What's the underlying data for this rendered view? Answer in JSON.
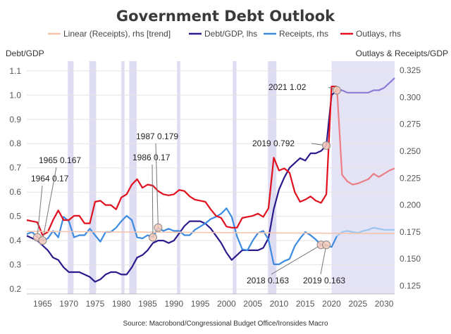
{
  "chart_data": {
    "type": "line",
    "title": "Government Debt Outlook",
    "source": "Source: Macrobond/Congressional Budget Office/Ironsides Macro",
    "left_axis_title": "Debt/GDP",
    "right_axis_title": "Outlays & Receipts/GDP",
    "x_range": [
      1962,
      2032
    ],
    "y_left_range": [
      0.18,
      1.14
    ],
    "y_right_range": [
      0.1175,
      0.3335
    ],
    "x_ticks": [
      1965,
      1970,
      1975,
      1980,
      1985,
      1990,
      1995,
      2000,
      2005,
      2010,
      2015,
      2020,
      2025,
      2030
    ],
    "y_left_ticks": [
      "0.2",
      "0.3",
      "0.4",
      "0.5",
      "0.6",
      "0.7",
      "0.8",
      "0.9",
      "1.0",
      "1.1"
    ],
    "y_right_ticks": [
      "0.125",
      "0.150",
      "0.175",
      "0.200",
      "0.225",
      "0.250",
      "0.275",
      "0.300",
      "0.325"
    ],
    "recessions": [
      [
        1969.8,
        1970.9
      ],
      [
        1973.9,
        1975.2
      ],
      [
        1980.0,
        1980.6
      ],
      [
        1981.5,
        1982.9
      ],
      [
        1990.6,
        1991.2
      ],
      [
        2001.2,
        2001.9
      ],
      [
        2007.9,
        2009.5
      ]
    ],
    "forecast_shade": [
      2020.0,
      2032.0
    ],
    "legend": [
      {
        "key": "trend",
        "label": "Linear (Receipts), rhs [trend]",
        "color": "#f5c4aa"
      },
      {
        "key": "debt",
        "label": "Debt/GDP, lhs",
        "color": "#2b1a8c"
      },
      {
        "key": "receipts",
        "label": "Receipts, rhs",
        "color": "#3d8be0"
      },
      {
        "key": "outlays",
        "label": "Outlays, rhs",
        "color": "#e0101e"
      }
    ],
    "series": [
      {
        "name": "Debt/GDP, lhs",
        "axis": "left",
        "color": "#2b1a8c",
        "forecast_color": "#8a7cd6",
        "x": [
          1962,
          1963,
          1964,
          1965,
          1966,
          1967,
          1968,
          1969,
          1970,
          1971,
          1972,
          1973,
          1974,
          1975,
          1976,
          1977,
          1978,
          1979,
          1980,
          1981,
          1982,
          1983,
          1984,
          1985,
          1986,
          1987,
          1988,
          1989,
          1990,
          1991,
          1992,
          1993,
          1994,
          1995,
          1996,
          1997,
          1998,
          1999,
          2000,
          2001,
          2002,
          2003,
          2004,
          2005,
          2006,
          2007,
          2008,
          2009,
          2010,
          2011,
          2012,
          2013,
          2014,
          2015,
          2016,
          2017,
          2018,
          2019,
          2020,
          2021,
          2022,
          2023,
          2024,
          2025,
          2026,
          2027,
          2028,
          2029,
          2030,
          2031,
          2032
        ],
        "y": [
          0.42,
          0.41,
          0.4,
          0.38,
          0.36,
          0.33,
          0.32,
          0.29,
          0.27,
          0.27,
          0.27,
          0.26,
          0.25,
          0.23,
          0.24,
          0.26,
          0.27,
          0.27,
          0.26,
          0.26,
          0.29,
          0.33,
          0.34,
          0.36,
          0.39,
          0.4,
          0.4,
          0.39,
          0.4,
          0.43,
          0.46,
          0.48,
          0.48,
          0.48,
          0.47,
          0.45,
          0.42,
          0.39,
          0.35,
          0.32,
          0.34,
          0.36,
          0.36,
          0.36,
          0.36,
          0.37,
          0.41,
          0.53,
          0.61,
          0.66,
          0.7,
          0.72,
          0.74,
          0.73,
          0.76,
          0.76,
          0.77,
          0.792,
          1.0,
          1.02,
          1.02,
          1.01,
          1.01,
          1.01,
          1.01,
          1.01,
          1.02,
          1.02,
          1.03,
          1.05,
          1.07
        ]
      },
      {
        "name": "Receipts, rhs",
        "axis": "right",
        "color": "#3d8be0",
        "forecast_color": "#9cc4ef",
        "x": [
          1962,
          1963,
          1964,
          1965,
          1966,
          1967,
          1968,
          1969,
          1970,
          1971,
          1972,
          1973,
          1974,
          1975,
          1976,
          1977,
          1978,
          1979,
          1980,
          1981,
          1982,
          1983,
          1984,
          1985,
          1986,
          1987,
          1988,
          1989,
          1990,
          1991,
          1992,
          1993,
          1994,
          1995,
          1996,
          1997,
          1998,
          1999,
          2000,
          2001,
          2002,
          2003,
          2004,
          2005,
          2006,
          2007,
          2008,
          2009,
          2010,
          2011,
          2012,
          2013,
          2014,
          2015,
          2016,
          2017,
          2018,
          2019,
          2020,
          2021,
          2022,
          2023,
          2024,
          2025,
          2026,
          2027,
          2028,
          2029,
          2030,
          2031,
          2032
        ],
        "y": [
          0.173,
          0.175,
          0.17,
          0.167,
          0.169,
          0.176,
          0.17,
          0.189,
          0.185,
          0.17,
          0.172,
          0.172,
          0.178,
          0.172,
          0.166,
          0.175,
          0.175,
          0.179,
          0.185,
          0.19,
          0.186,
          0.17,
          0.169,
          0.172,
          0.17,
          0.179,
          0.176,
          0.178,
          0.176,
          0.176,
          0.172,
          0.172,
          0.177,
          0.18,
          0.183,
          0.187,
          0.189,
          0.192,
          0.197,
          0.189,
          0.171,
          0.159,
          0.158,
          0.167,
          0.174,
          0.176,
          0.168,
          0.145,
          0.145,
          0.148,
          0.15,
          0.162,
          0.169,
          0.175,
          0.172,
          0.168,
          0.163,
          0.163,
          0.161,
          0.171,
          0.175,
          0.176,
          0.175,
          0.174,
          0.176,
          0.177,
          0.179,
          0.178,
          0.177,
          0.177,
          0.177
        ]
      },
      {
        "name": "Outlays, rhs",
        "axis": "right",
        "color": "#e0101e",
        "forecast_color": "#eb7e84",
        "x": [
          1962,
          1963,
          1964,
          1965,
          1966,
          1967,
          1968,
          1969,
          1970,
          1971,
          1972,
          1973,
          1974,
          1975,
          1976,
          1977,
          1978,
          1979,
          1980,
          1981,
          1982,
          1983,
          1984,
          1985,
          1986,
          1987,
          1988,
          1989,
          1990,
          1991,
          1992,
          1993,
          1994,
          1995,
          1996,
          1997,
          1998,
          1999,
          2000,
          2001,
          2002,
          2003,
          2004,
          2005,
          2006,
          2007,
          2008,
          2009,
          2010,
          2011,
          2012,
          2013,
          2014,
          2015,
          2016,
          2017,
          2018,
          2019,
          2020,
          2021,
          2022,
          2023,
          2024,
          2025,
          2026,
          2027,
          2028,
          2029,
          2030,
          2031,
          2032
        ],
        "y": [
          0.186,
          0.185,
          0.184,
          0.172,
          0.175,
          0.186,
          0.195,
          0.186,
          0.186,
          0.19,
          0.19,
          0.183,
          0.183,
          0.203,
          0.204,
          0.2,
          0.2,
          0.196,
          0.207,
          0.21,
          0.219,
          0.224,
          0.216,
          0.219,
          0.218,
          0.213,
          0.21,
          0.209,
          0.21,
          0.214,
          0.213,
          0.208,
          0.205,
          0.204,
          0.203,
          0.196,
          0.19,
          0.188,
          0.18,
          0.179,
          0.179,
          0.188,
          0.189,
          0.19,
          0.192,
          0.189,
          0.197,
          0.244,
          0.232,
          0.234,
          0.23,
          0.212,
          0.203,
          0.205,
          0.208,
          0.204,
          0.202,
          0.21,
          0.31,
          0.31,
          0.228,
          0.222,
          0.219,
          0.22,
          0.222,
          0.224,
          0.229,
          0.226,
          0.229,
          0.232,
          0.234
        ]
      },
      {
        "name": "Linear (Receipts), rhs [trend]",
        "axis": "right",
        "color": "#f5c4aa",
        "x": [
          1962,
          2032
        ],
        "y": [
          0.1755,
          0.1735
        ]
      }
    ],
    "annotations": [
      {
        "label": "1964 0.17",
        "x": 1964,
        "y": 0.17,
        "axis": "right"
      },
      {
        "label": "1965 0.167",
        "x": 1965,
        "y": 0.167,
        "axis": "right"
      },
      {
        "label": "1986 0.17",
        "x": 1986,
        "y": 0.17,
        "axis": "right"
      },
      {
        "label": "1987 0.179",
        "x": 1987,
        "y": 0.179,
        "axis": "right"
      },
      {
        "label": "2019 0.792",
        "x": 2019,
        "y": 0.792,
        "axis": "left"
      },
      {
        "label": "2021 1.02",
        "x": 2021,
        "y": 1.02,
        "axis": "left"
      },
      {
        "label": "2018 0.163",
        "x": 2018,
        "y": 0.163,
        "axis": "right"
      },
      {
        "label": "2019 0.163",
        "x": 2019,
        "y": 0.163,
        "axis": "right"
      }
    ]
  }
}
